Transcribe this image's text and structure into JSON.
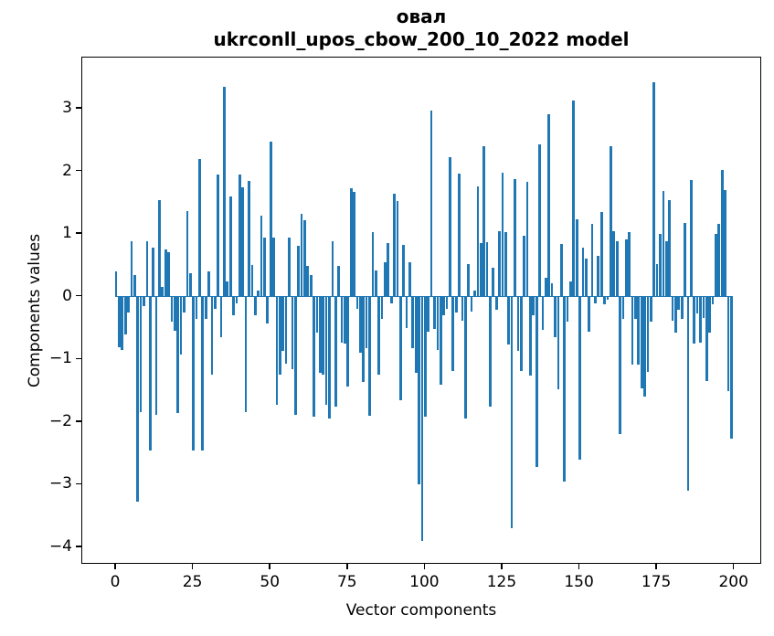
{
  "figure": {
    "title_line1": "овал",
    "title_line2": "ukrconll_upos_cbow_200_10_2022 model",
    "xlabel": "Vector components",
    "ylabel": "Components values"
  },
  "chart_data": {
    "type": "bar",
    "title": "овал — ukrconll_upos_cbow_200_10_2022 model",
    "xlabel": "Vector components",
    "ylabel": "Components values",
    "bar_color": "#1f77b4",
    "axis_color": "#000000",
    "background_color": "#ffffff",
    "grid": false,
    "legend": false,
    "bar_width_units": 0.8,
    "xlim": [
      -10.95,
      208.95
    ],
    "ylim": [
      -4.28,
      3.82
    ],
    "x_ticks": [
      0,
      25,
      50,
      75,
      100,
      125,
      150,
      175,
      200
    ],
    "y_ticks": [
      3,
      2,
      1,
      0,
      -1,
      -2,
      -3,
      -4
    ],
    "x_range_note": "vector component indices 0..199",
    "values": [
      0.4,
      -0.8,
      -0.85,
      -0.6,
      -0.25,
      0.88,
      0.35,
      -3.27,
      -1.84,
      -0.15,
      0.88,
      -2.45,
      0.78,
      -1.89,
      1.55,
      0.15,
      0.76,
      0.71,
      -0.4,
      -0.55,
      -1.86,
      -0.92,
      -0.25,
      1.37,
      0.37,
      -2.45,
      -0.35,
      2.2,
      -2.45,
      -0.35,
      0.4,
      -1.25,
      -0.2,
      1.95,
      -0.65,
      3.35,
      0.25,
      1.6,
      -0.3,
      -0.1,
      1.95,
      1.75,
      -1.84,
      1.85,
      0.5,
      -0.3,
      0.1,
      1.3,
      0.95,
      -0.43,
      2.48,
      0.95,
      -1.72,
      -1.24,
      -0.87,
      -1.07,
      0.95,
      -1.16,
      -1.89,
      0.81,
      1.32,
      1.22,
      0.49,
      0.35,
      -1.92,
      -0.58,
      -1.21,
      -1.25,
      -1.72,
      -1.94,
      0.88,
      -1.75,
      0.49,
      -0.73,
      -0.75,
      -1.43,
      1.74,
      1.68,
      -0.2,
      -0.9,
      -1.36,
      -0.82,
      -1.9,
      1.03,
      0.42,
      -1.24,
      -0.35,
      0.55,
      0.86,
      -0.1,
      1.64,
      1.53,
      -1.65,
      0.83,
      -0.5,
      0.55,
      -0.82,
      -1.22,
      -3.0,
      -3.9,
      -1.92,
      -0.56,
      2.97,
      -0.51,
      -0.85,
      -1.4,
      -0.3,
      -0.2,
      2.23,
      -1.18,
      -0.25,
      1.96,
      -0.38,
      -1.94,
      0.52,
      -0.24,
      0.1,
      1.76,
      0.86,
      2.41,
      0.87,
      -1.75,
      0.47,
      -0.21,
      1.05,
      1.98,
      1.03,
      -0.77,
      -3.7,
      1.88,
      -0.87,
      -1.19,
      0.98,
      1.83,
      -1.26,
      -0.3,
      -2.72,
      2.43,
      -0.53,
      0.3,
      2.92,
      0.22,
      -0.65,
      -1.48,
      0.84,
      -2.95,
      -0.4,
      0.25,
      3.14,
      1.23,
      -2.6,
      0.78,
      0.61,
      -0.56,
      1.17,
      -0.1,
      0.66,
      1.35,
      -0.12,
      -0.05,
      2.41,
      1.04,
      0.89,
      -2.2,
      -0.36,
      0.91,
      1.03,
      -1.09,
      -0.36,
      -1.09,
      -1.46,
      -1.59,
      -1.2,
      -0.4,
      3.43,
      0.52,
      1.01,
      1.69,
      0.89,
      1.55,
      -0.38,
      -0.58,
      -0.21,
      -0.36,
      1.18,
      -3.1,
      1.87,
      -0.75,
      -0.27,
      -0.73,
      -0.34,
      -1.35,
      -0.58,
      -0.12,
      1.0,
      1.17,
      2.03,
      1.71,
      -1.51,
      -2.26
    ]
  }
}
